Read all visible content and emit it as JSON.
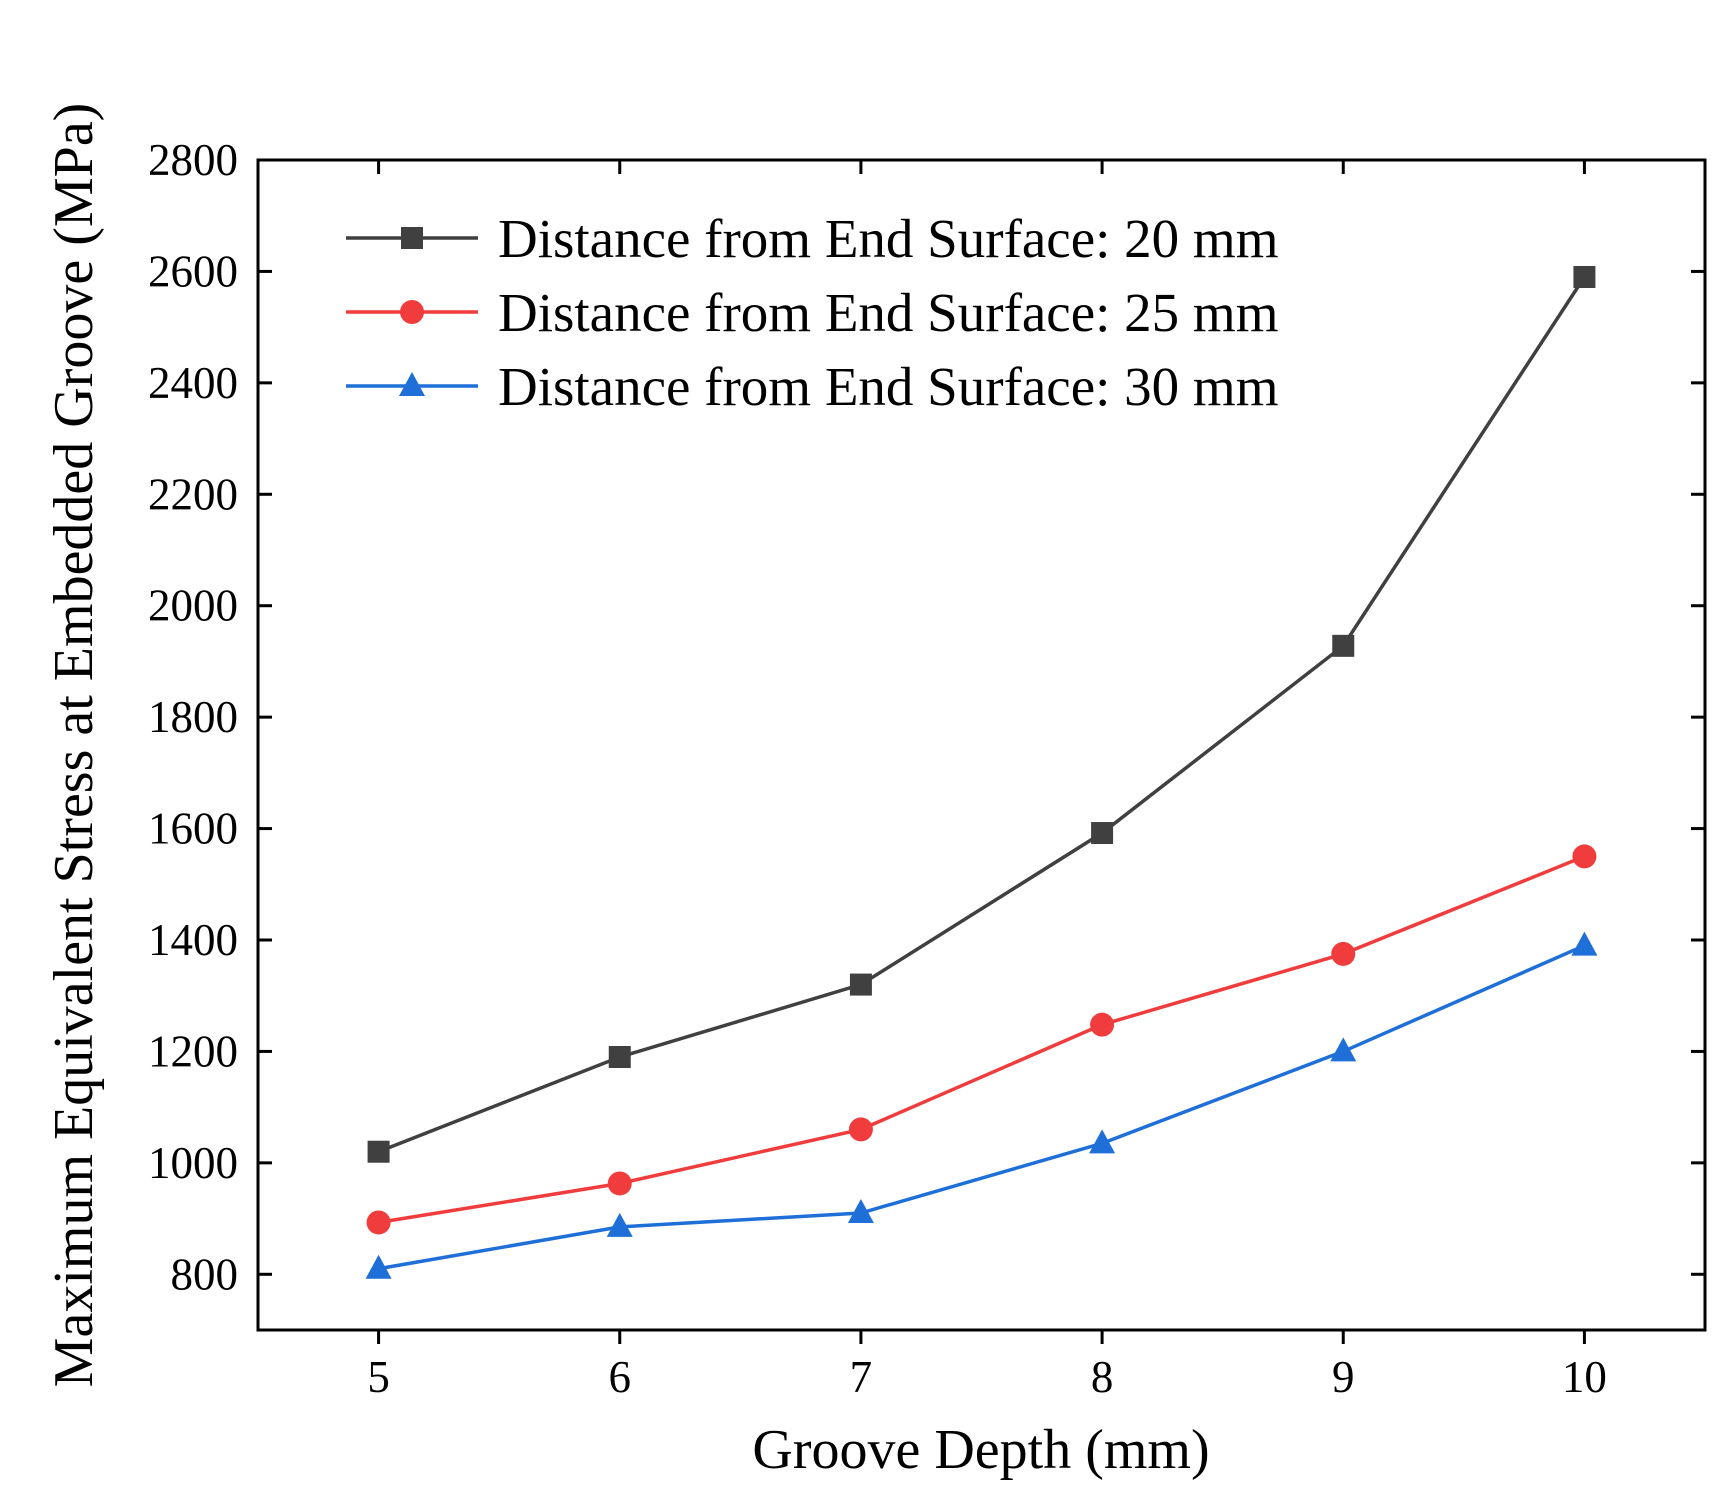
{
  "chart_data": {
    "type": "line",
    "title": "",
    "xlabel": "Groove Depth (mm)",
    "ylabel": "Maximum Equivalent Stress at Embedded Groove (MPa)",
    "x": [
      5,
      6,
      7,
      8,
      9,
      10
    ],
    "xlim": [
      4.5,
      10.5
    ],
    "ylim": [
      700,
      2800
    ],
    "xticks": [
      "5",
      "6",
      "7",
      "8",
      "9",
      "10"
    ],
    "yticks": [
      "800",
      "1000",
      "1200",
      "1400",
      "1600",
      "1800",
      "2000",
      "2200",
      "2400",
      "2600",
      "2800"
    ],
    "grid": false,
    "legend_position": "top-left",
    "series": [
      {
        "name": "Distance from End Surface: 20 mm",
        "marker": "square",
        "color": "#404040",
        "values": [
          1020,
          1190,
          1320,
          1592,
          1928,
          2590
        ]
      },
      {
        "name": "Distance from End Surface: 25 mm",
        "marker": "circle",
        "color": "#f03c3c",
        "values": [
          893,
          963,
          1060,
          1248,
          1375,
          1550
        ]
      },
      {
        "name": "Distance from End Surface: 30 mm",
        "marker": "triangle",
        "color": "#1f6fd8",
        "values": [
          810,
          885,
          910,
          1035,
          1200,
          1390
        ]
      }
    ]
  }
}
